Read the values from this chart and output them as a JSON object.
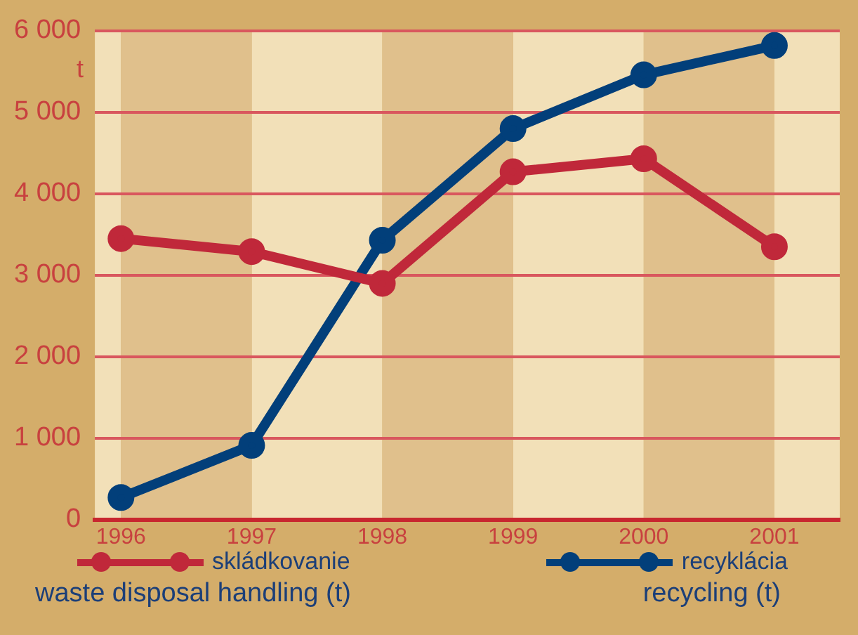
{
  "chart_data": {
    "type": "line",
    "ylabel": "t",
    "x": [
      1996,
      1997,
      1998,
      1999,
      2000,
      2001
    ],
    "series": [
      {
        "name": "skládkovanie",
        "color": "#c0283a",
        "values": [
          3450,
          3290,
          2900,
          4270,
          4430,
          3350
        ]
      },
      {
        "name": "recyklácia",
        "color": "#023f7a",
        "values": [
          270,
          910,
          3430,
          4800,
          5460,
          5820
        ]
      }
    ],
    "xlim": [
      1995.8,
      2001.5
    ],
    "xticks": [
      1996,
      1997,
      1998,
      1999,
      2000,
      2001
    ],
    "ylim": [
      0,
      6000
    ],
    "yticks": [
      0,
      {
        "value": 1000,
        "label": "1 000"
      },
      {
        "value": 2000,
        "label": "2 000"
      },
      {
        "value": 3000,
        "label": "3 000"
      },
      {
        "value": 4000,
        "label": "4 000"
      },
      {
        "value": 5000,
        "label": "5 000"
      },
      {
        "value": 6000,
        "label": "6 000"
      }
    ],
    "bands": [
      {
        "axis": "x",
        "from": 1995.8,
        "to": 1996,
        "color": "#f2e0b8"
      },
      {
        "axis": "x",
        "from": 1997,
        "to": 1998,
        "color": "#f2e0b8"
      },
      {
        "axis": "x",
        "from": 1999,
        "to": 2000,
        "color": "#f2e0b8"
      },
      {
        "axis": "x",
        "from": 2001,
        "to": 2001.5,
        "color": "#f2e0b8"
      },
      {
        "axis": "x",
        "from": 1996,
        "to": 1997,
        "color": "#e0c08c"
      },
      {
        "axis": "x",
        "from": 1998,
        "to": 1999,
        "color": "#e0c08c"
      },
      {
        "axis": "x",
        "from": 2000,
        "to": 2001,
        "color": "#e0c08c"
      }
    ],
    "grid": "y",
    "legend": "bottom",
    "marker": "circle",
    "line_style": "solid",
    "annotations": [
      "waste disposal handling (t)",
      "recycling (t)"
    ]
  }
}
